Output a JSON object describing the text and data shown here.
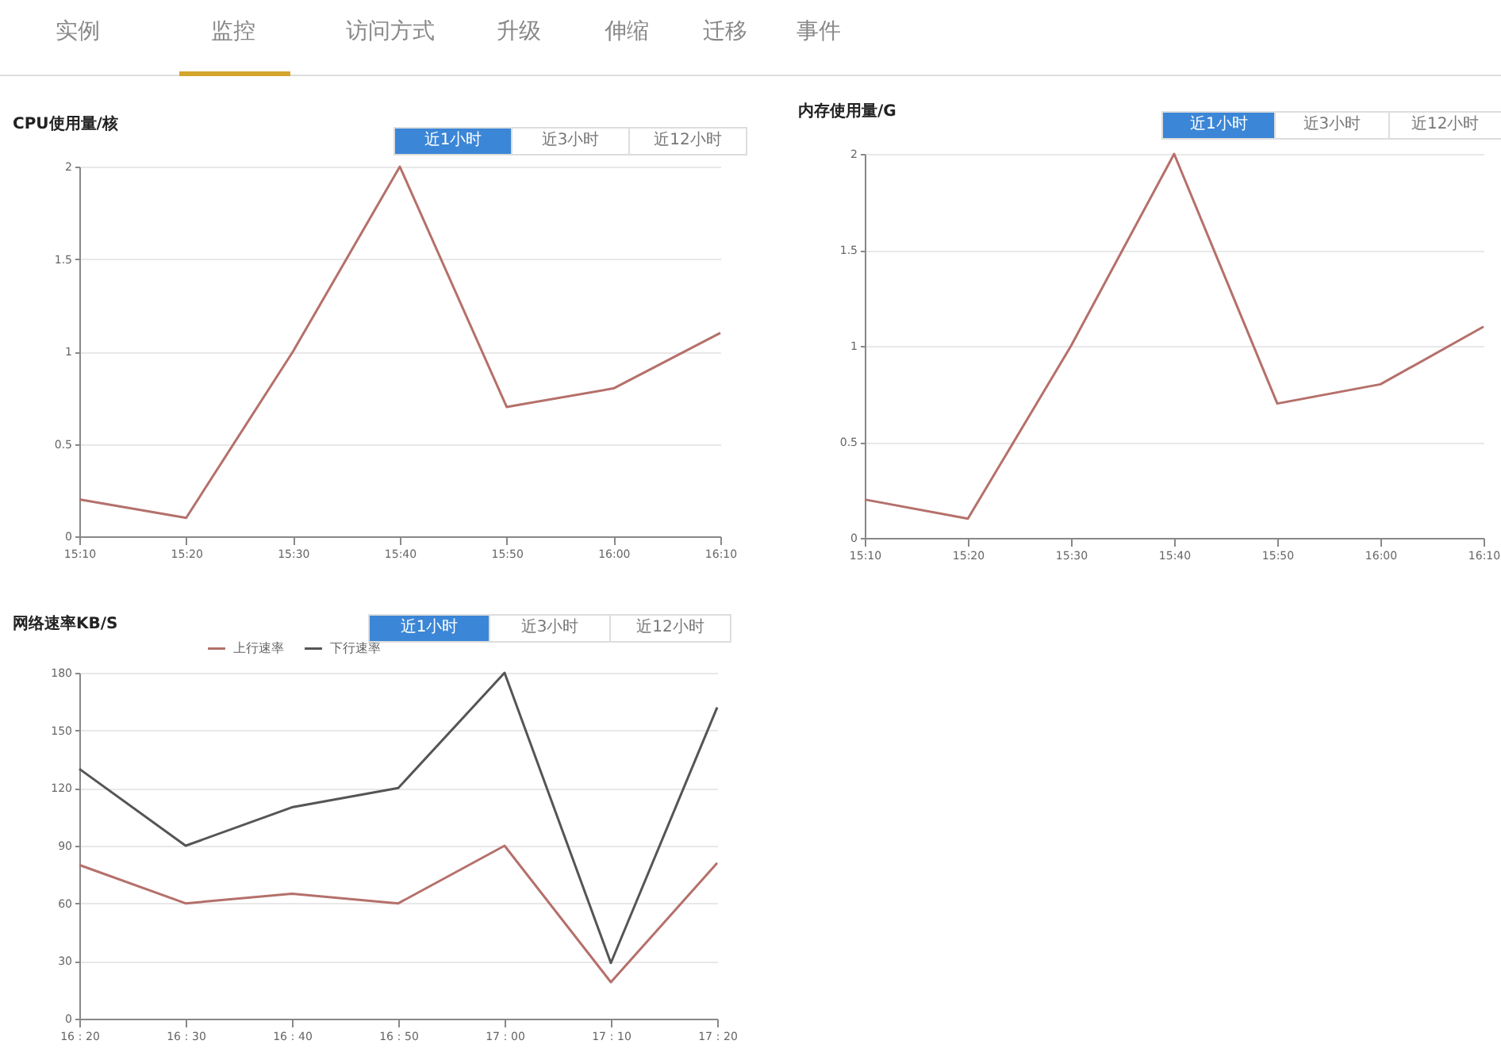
{
  "chart_data": [
    {
      "type": "other",
      "annotations": [
        "实例",
        "监控",
        "访问方式",
        "升级",
        "伸缩",
        "迁移",
        "事件"
      ]
    },
    {
      "type": "line",
      "title": "CPU使用量/核",
      "annotations": [
        "近1小时",
        "近3小时",
        "近12小时"
      ],
      "categories": [
        "15:10",
        "15:20",
        "15:30",
        "15:40",
        "15:50",
        "16:00",
        "16:10"
      ],
      "series": [
        {
          "color": "#b5706b",
          "values": [
            0.2,
            0.1,
            1,
            2,
            0.7,
            0.8,
            1.1
          ]
        }
      ],
      "ylim": [
        0,
        2
      ],
      "yticks": [
        0,
        0.5,
        1,
        1.5,
        2
      ],
      "grid": "y",
      "marker": "none"
    },
    {
      "type": "line",
      "title": "内存使用量/G",
      "annotations": [
        "近1小时",
        "近3小时",
        "近12小时"
      ],
      "categories": [
        "15:10",
        "15:20",
        "15:30",
        "15:40",
        "15:50",
        "16:00",
        "16:10"
      ],
      "series": [
        {
          "color": "#b5706b",
          "values": [
            0.2,
            0.1,
            1,
            2,
            0.7,
            0.8,
            1.1
          ]
        }
      ],
      "ylim": [
        0,
        2
      ],
      "yticks": [
        0,
        0.5,
        1,
        1.5,
        2
      ],
      "grid": "y",
      "marker": "none"
    },
    {
      "type": "line",
      "title": "网络速率KB/S",
      "annotations": [
        "近1小时",
        "近3小时",
        "近12小时"
      ],
      "categories": [
        "16：20",
        "16：30",
        "16：40",
        "16：50",
        "17：00",
        "17：10",
        "17：20"
      ],
      "series": [
        {
          "name": "上行速率",
          "color": "#b5706b",
          "values": [
            80,
            60,
            65,
            60,
            90,
            19,
            81
          ]
        },
        {
          "name": "下行速率",
          "color": "#555555",
          "values": [
            130,
            90,
            110,
            120,
            180,
            29,
            162
          ]
        }
      ],
      "ylim": [
        0,
        180
      ],
      "yticks": [
        0,
        30,
        60,
        90,
        120,
        150,
        180
      ],
      "grid": "y",
      "marker": "none",
      "legend": "top"
    }
  ]
}
